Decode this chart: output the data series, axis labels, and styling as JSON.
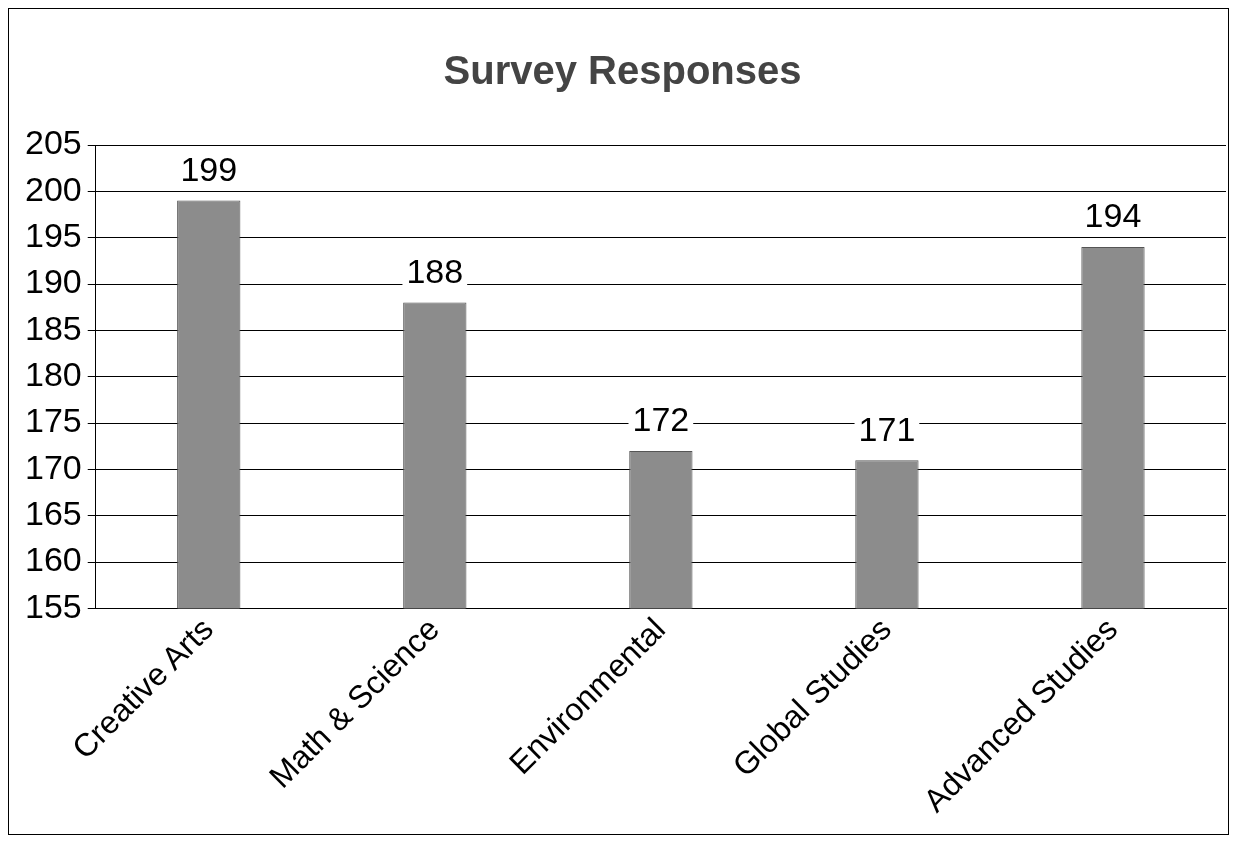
{
  "chart_data": {
    "type": "bar",
    "title": "Survey Responses",
    "categories": [
      "Creative Arts",
      "Math & Science",
      "Environmental",
      "Global Studies",
      "Advanced Studies"
    ],
    "values": [
      199,
      188,
      172,
      171,
      194
    ],
    "color": "#8c8c8c",
    "ylim": [
      155,
      205
    ],
    "yticks": [
      155,
      160,
      165,
      170,
      175,
      180,
      185,
      190,
      195,
      200,
      205
    ],
    "grid": "y",
    "data_labels": true,
    "legend": false
  }
}
